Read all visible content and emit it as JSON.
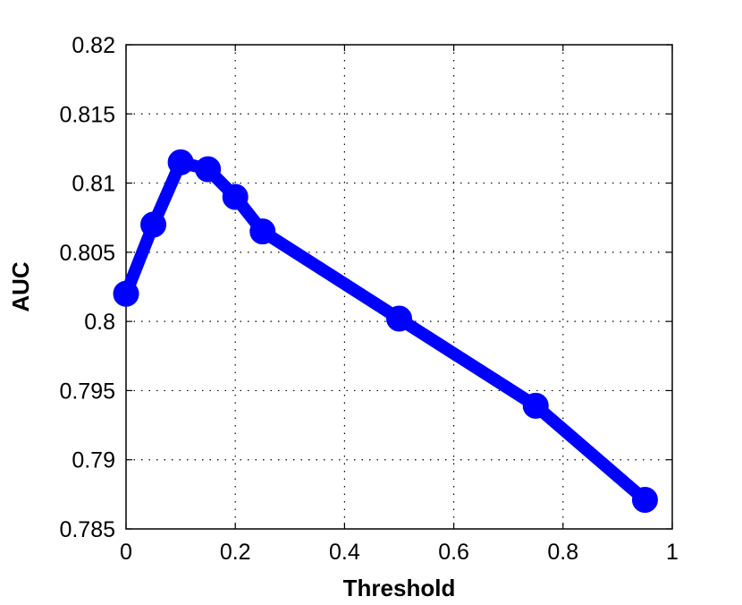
{
  "chart_data": {
    "type": "line",
    "xlabel": "Threshold",
    "ylabel": "AUC",
    "xlim": [
      0,
      1
    ],
    "ylim": [
      0.785,
      0.82
    ],
    "xticks": [
      0,
      0.2,
      0.4,
      0.6,
      0.8,
      1
    ],
    "xtick_labels": [
      "0",
      "0.2",
      "0.4",
      "0.6",
      "0.8",
      "1"
    ],
    "yticks": [
      0.785,
      0.79,
      0.795,
      0.8,
      0.805,
      0.81,
      0.815,
      0.82
    ],
    "ytick_labels": [
      "0.785",
      "0.79",
      "0.795",
      "0.8",
      "0.805",
      "0.81",
      "0.815",
      "0.82"
    ],
    "grid": true,
    "legend": "none",
    "series": [
      {
        "color": "#0000ff",
        "marker": "circle",
        "x": [
          0,
          0.05,
          0.1,
          0.15,
          0.2,
          0.25,
          0.5,
          0.75,
          0.95
        ],
        "y": [
          0.802,
          0.807,
          0.8115,
          0.811,
          0.809,
          0.8065,
          0.8002,
          0.7939,
          0.7871
        ]
      }
    ]
  }
}
